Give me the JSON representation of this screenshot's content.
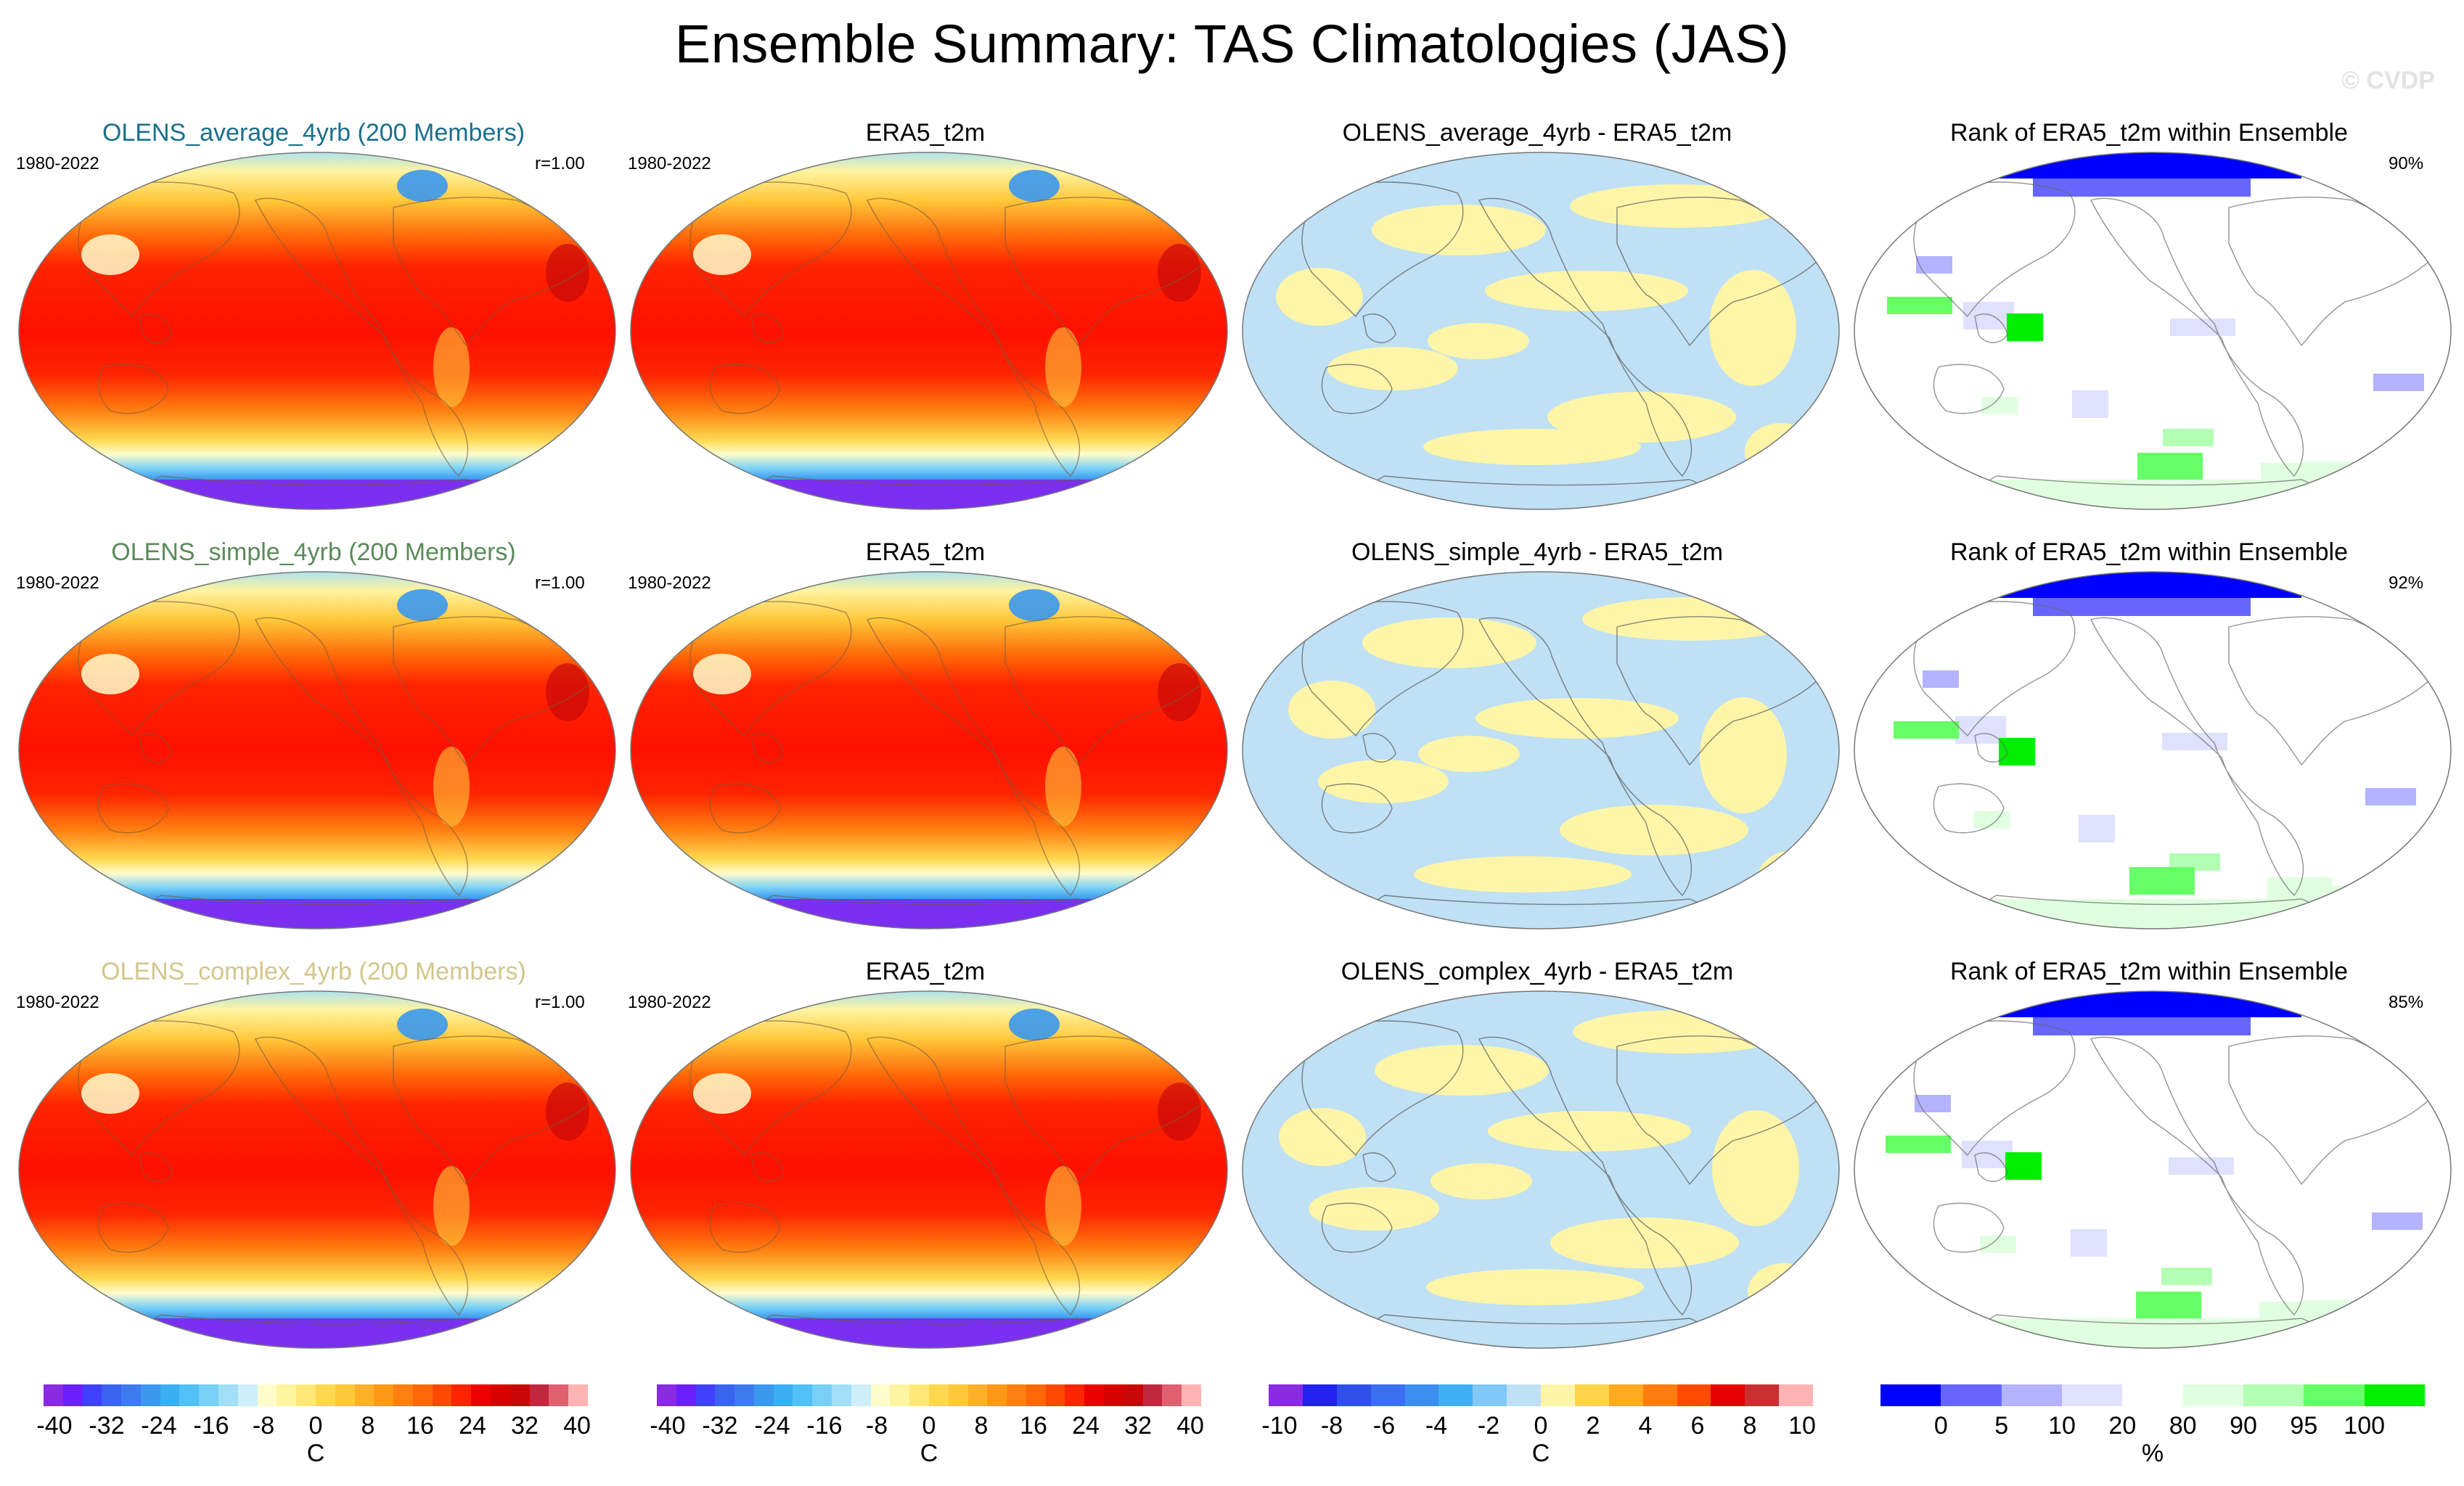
{
  "title": "Ensemble Summary: TAS Climatologies (JAS)",
  "watermark": "© CVDP",
  "colors": {
    "row_title_colors": [
      "#1a6f8c",
      "#5a8a5a",
      "#d2c68a"
    ],
    "diff_positive": "#fff5a8",
    "diff_negative": "#bfe0f5",
    "rank_low": "#0000ff",
    "rank_high": "#00ee00",
    "antarctica": "#7b2ff0"
  },
  "rows": [
    {
      "model_title": "OLENS_average_4yrb (200 Members)",
      "period": "1980-2022",
      "corr": "r=1.00",
      "obs_title": "ERA5_t2m",
      "obs_period": "1980-2022",
      "diff_title": "OLENS_average_4yrb - ERA5_t2m",
      "rank_title": "Rank of ERA5_t2m within Ensemble",
      "rank_pct": "90%"
    },
    {
      "model_title": "OLENS_simple_4yrb (200 Members)",
      "period": "1980-2022",
      "corr": "r=1.00",
      "obs_title": "ERA5_t2m",
      "obs_period": "1980-2022",
      "diff_title": "OLENS_simple_4yrb - ERA5_t2m",
      "rank_title": "Rank of ERA5_t2m within Ensemble",
      "rank_pct": "92%"
    },
    {
      "model_title": "OLENS_complex_4yrb (200 Members)",
      "period": "1980-2022",
      "corr": "r=1.00",
      "obs_title": "ERA5_t2m",
      "obs_period": "1980-2022",
      "diff_title": "OLENS_complex_4yrb - ERA5_t2m",
      "rank_title": "Rank of ERA5_t2m within Ensemble",
      "rank_pct": "85%"
    }
  ],
  "colorbars": [
    {
      "ticks": [
        "-40",
        "-32",
        "-24",
        "-16",
        "-8",
        "0",
        "8",
        "16",
        "24",
        "32",
        "40"
      ],
      "unit": "C",
      "colors": [
        "#8a2be2",
        "#6a1fff",
        "#4040ff",
        "#3a63ee",
        "#3c7cf0",
        "#3a98ee",
        "#3aaff3",
        "#50c0f7",
        "#78d0f7",
        "#a2dff7",
        "#cdeefa",
        "#fffccc",
        "#fff4a0",
        "#ffe878",
        "#ffd850",
        "#ffc83a",
        "#ffb02a",
        "#ff9818",
        "#ff8010",
        "#ff6808",
        "#ff4800",
        "#ff2400",
        "#ee0000",
        "#d80000",
        "#c80808",
        "#c02840",
        "#e06070",
        "#ffb3b3"
      ]
    },
    {
      "ticks": [
        "-40",
        "-32",
        "-24",
        "-16",
        "-8",
        "0",
        "8",
        "16",
        "24",
        "32",
        "40"
      ],
      "unit": "C",
      "colors": [
        "#8a2be2",
        "#6a1fff",
        "#4040ff",
        "#3a63ee",
        "#3c7cf0",
        "#3a98ee",
        "#3aaff3",
        "#50c0f7",
        "#78d0f7",
        "#a2dff7",
        "#cdeefa",
        "#fffccc",
        "#fff4a0",
        "#ffe878",
        "#ffd850",
        "#ffc83a",
        "#ffb02a",
        "#ff9818",
        "#ff8010",
        "#ff6808",
        "#ff4800",
        "#ff2400",
        "#ee0000",
        "#d80000",
        "#c80808",
        "#c02840",
        "#e06070",
        "#ffb3b3"
      ]
    },
    {
      "ticks": [
        "-10",
        "-8",
        "-6",
        "-4",
        "-2",
        "0",
        "2",
        "4",
        "6",
        "8",
        "10"
      ],
      "unit": "C",
      "colors": [
        "#8a2be2",
        "#2222ee",
        "#2f4fe8",
        "#3a6ff0",
        "#3c8ff0",
        "#40aef3",
        "#80c8f5",
        "#bfe0f5",
        "#fff5a8",
        "#ffd34a",
        "#ffaa20",
        "#ff7c10",
        "#ff4c00",
        "#e60000",
        "#c83030",
        "#ffb3b3"
      ]
    },
    {
      "ticks": [
        "0",
        "5",
        "10",
        "20",
        "80",
        "90",
        "95",
        "100"
      ],
      "unit": "%",
      "colors": [
        "#0000ff",
        "#6666ff",
        "#b3b3ff",
        "#e0e0ff",
        "#ffffff",
        "#e0ffe0",
        "#b3ffb3",
        "#66ff66",
        "#00ee00"
      ]
    }
  ]
}
